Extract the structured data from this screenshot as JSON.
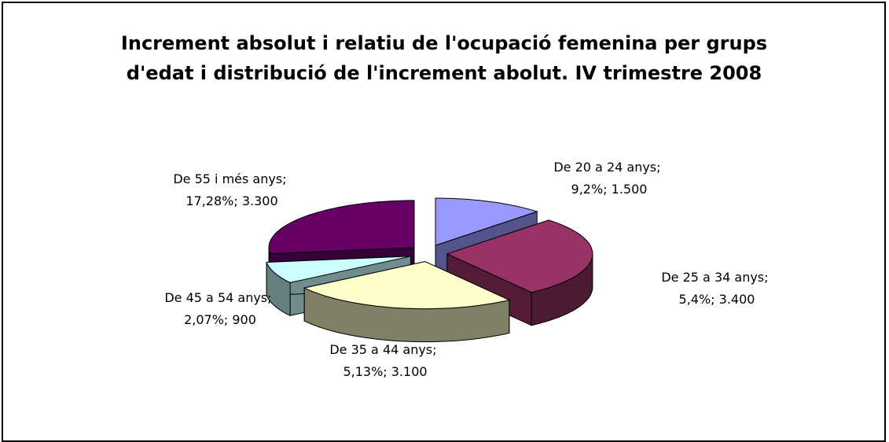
{
  "chart_data": {
    "type": "pie3d",
    "title": "Increment absolut i relatiu de l'ocupació femenina per grups d'edat i distribució de l'increment abolut. IV trimestre 2008",
    "categories": [
      "De 20 a 24 anys",
      "De 25 a 34 anys",
      "De 35 a 44 anys",
      "De 45 a 54 anys",
      "De 55 i més anys"
    ],
    "values": [
      1500,
      3400,
      3100,
      900,
      3300
    ],
    "value_labels": [
      "1.500",
      "3.400",
      "3.100",
      "900",
      "3.300"
    ],
    "percent_labels": [
      "9,2%",
      "5,4%",
      "5,13%",
      "2,07%",
      "17,28%"
    ],
    "label_separator": "; ",
    "colors": [
      "#9999ff",
      "#993366",
      "#ffffcc",
      "#ccffff",
      "#660066"
    ]
  }
}
